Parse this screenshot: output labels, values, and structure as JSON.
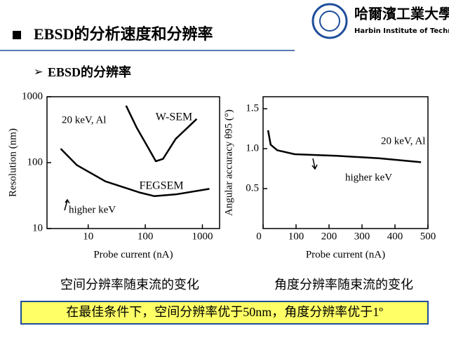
{
  "header": {
    "title": "EBSD的分析速度和分辨率",
    "logo_name": "哈爾濱工業大學",
    "logo_english": "Harbin Institute of Technology"
  },
  "bullet": "EBSD的分辨率",
  "captions": [
    "空间分辨率随束流的变化",
    "角度分辨率随束流的变化"
  ],
  "footer": "在最佳条件下，空间分辨率优于50nm，角度分辨率优于1º",
  "chart_data": [
    {
      "type": "line",
      "x_label": "Probe current (nA)",
      "y_label": "Resolution (nm)",
      "xscale": "log",
      "yscale": "log",
      "xlim": [
        1.9,
        2000
      ],
      "ylim": [
        10,
        1000
      ],
      "xticks": [
        10,
        100,
        1000
      ],
      "yticks": [
        10,
        100,
        1000
      ],
      "annotations": [
        "20 keV, Al",
        "higher keV"
      ],
      "series": [
        {
          "name": "W-SEM",
          "color": "#000000",
          "x": [
            46,
            71,
            109,
            153,
            204,
            340,
            795
          ],
          "values": [
            733,
            337,
            177,
            105,
            114,
            229,
            460
          ]
        },
        {
          "name": "FEGSEM",
          "color": "#000000",
          "x": [
            3.3,
            6.3,
            20,
            82,
            145,
            340,
            1327
          ],
          "values": [
            163,
            92,
            52,
            35,
            31,
            33,
            40
          ]
        }
      ]
    },
    {
      "type": "line",
      "x_label": "Probe current (nA)",
      "y_label": "Angular accuracy θ95 (°)",
      "xlim": [
        0,
        500
      ],
      "ylim": [
        0,
        1.65
      ],
      "xticks": [
        0,
        100,
        200,
        300,
        400,
        500
      ],
      "yticks": [
        {
          "value": 0.5,
          "label": "0.5"
        },
        {
          "value": 1,
          "label": "1.0"
        },
        {
          "value": 1.5,
          "label": "1.5"
        }
      ],
      "annotations": [
        "20 keV, Al",
        "higher keV"
      ],
      "series": [
        {
          "color": "#000000",
          "x": [
            15,
            23,
            43,
            96,
            223,
            351,
            479
          ],
          "values": [
            1.23,
            1.05,
            0.98,
            0.93,
            0.91,
            0.88,
            0.83
          ]
        }
      ]
    }
  ]
}
